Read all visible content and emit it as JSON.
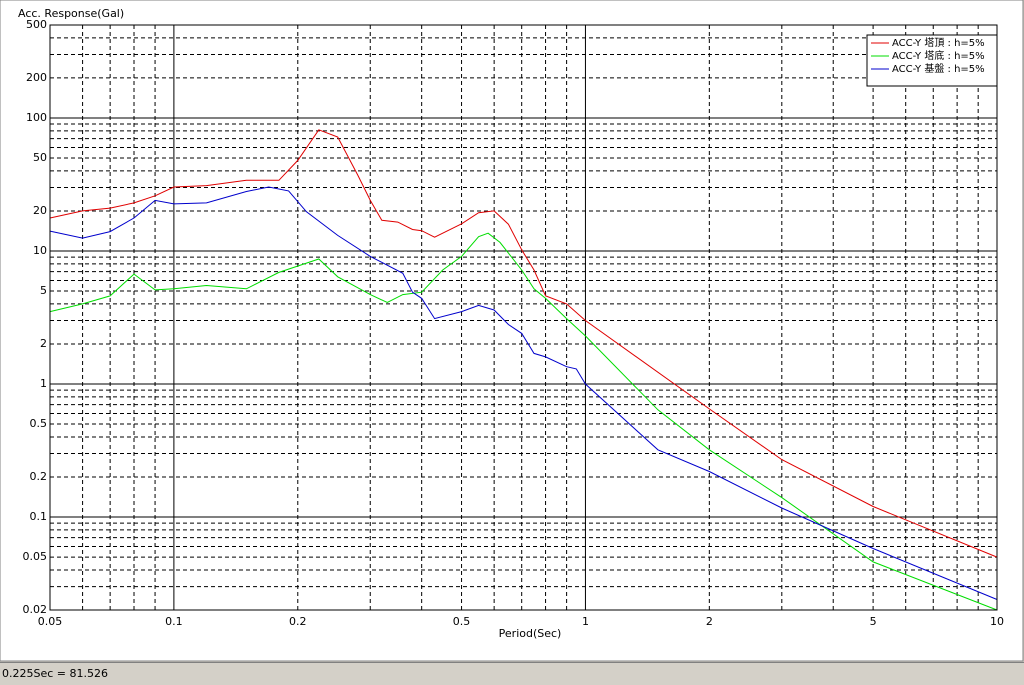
{
  "chart_data": {
    "type": "line",
    "y_label": "Acc. Response(Gal)",
    "x_label": "Period(Sec)",
    "xscale": "log",
    "yscale": "log",
    "legend": "top-right",
    "xlim": [
      0.05,
      10
    ],
    "ylim": [
      0.02,
      500
    ],
    "xticks": [
      0.05,
      0.1,
      0.2,
      0.5,
      1,
      2,
      5,
      10
    ],
    "yticks": [
      0.02,
      0.05,
      0.1,
      0.2,
      0.5,
      1,
      2,
      5,
      10,
      20,
      50,
      100,
      200,
      500
    ],
    "xgrid": [
      0.05,
      0.06,
      0.07,
      0.08,
      0.09,
      0.1,
      0.2,
      0.3,
      0.4,
      0.5,
      0.6,
      0.7,
      0.8,
      0.9,
      1,
      2,
      3,
      4,
      5,
      6,
      7,
      8,
      9,
      10
    ],
    "ygrid": [
      0.02,
      0.03,
      0.04,
      0.05,
      0.06,
      0.07,
      0.08,
      0.09,
      0.1,
      0.2,
      0.3,
      0.4,
      0.5,
      0.6,
      0.7,
      0.8,
      0.9,
      1,
      2,
      3,
      4,
      5,
      6,
      7,
      8,
      9,
      10,
      20,
      30,
      40,
      50,
      60,
      70,
      80,
      90,
      100,
      200,
      300,
      400,
      500
    ],
    "series": [
      {
        "name": "ACC-Y 塔頂 : h=5%",
        "color": "#e00000",
        "x": [
          0.05,
          0.06,
          0.07,
          0.08,
          0.09,
          0.1,
          0.12,
          0.15,
          0.18,
          0.2,
          0.225,
          0.25,
          0.28,
          0.3,
          0.32,
          0.35,
          0.38,
          0.4,
          0.43,
          0.5,
          0.55,
          0.6,
          0.65,
          0.7,
          0.75,
          0.8,
          0.9,
          1,
          2,
          3,
          5,
          10
        ],
        "values": [
          17.7,
          20,
          21,
          23,
          26,
          30.3,
          31,
          34,
          34,
          48,
          81.526,
          72,
          37,
          24,
          17,
          16.5,
          14.5,
          14.2,
          12.7,
          16,
          19.4,
          20,
          15.9,
          10.2,
          7.2,
          4.6,
          4,
          3,
          0.65,
          0.27,
          0.12,
          0.05
        ]
      },
      {
        "name": "ACC-Y 塔底 : h=5%",
        "color": "#00dd00",
        "x": [
          0.05,
          0.06,
          0.07,
          0.08,
          0.09,
          0.1,
          0.12,
          0.15,
          0.18,
          0.225,
          0.25,
          0.3,
          0.33,
          0.36,
          0.4,
          0.45,
          0.5,
          0.55,
          0.58,
          0.62,
          0.7,
          0.75,
          0.8,
          0.9,
          1,
          1.5,
          2,
          3,
          5,
          10
        ],
        "values": [
          3.5,
          4,
          4.6,
          6.7,
          5.1,
          5.2,
          5.5,
          5.2,
          6.9,
          8.7,
          6.4,
          4.7,
          4.1,
          4.7,
          4.9,
          7.2,
          9.1,
          12.8,
          13.6,
          11.6,
          7.2,
          5.2,
          4.4,
          3.1,
          2.3,
          0.64,
          0.32,
          0.14,
          0.046,
          0.02
        ]
      },
      {
        "name": "ACC-Y 基盤 : h=5%",
        "color": "#0000cc",
        "x": [
          0.05,
          0.06,
          0.07,
          0.08,
          0.09,
          0.1,
          0.12,
          0.15,
          0.17,
          0.19,
          0.21,
          0.25,
          0.3,
          0.36,
          0.38,
          0.4,
          0.43,
          0.5,
          0.55,
          0.6,
          0.65,
          0.7,
          0.75,
          0.8,
          0.9,
          0.95,
          1,
          1.5,
          2,
          3,
          5,
          10
        ],
        "values": [
          14.1,
          12.5,
          14,
          17.7,
          24,
          22.6,
          23,
          28,
          30.3,
          28.3,
          19.7,
          13.1,
          9.1,
          6.8,
          4.9,
          4.4,
          3.1,
          3.5,
          3.9,
          3.6,
          2.8,
          2.4,
          1.7,
          1.6,
          1.35,
          1.3,
          1,
          0.32,
          0.22,
          0.117,
          0.058,
          0.024
        ]
      }
    ]
  },
  "status_bar": "0.225Sec = 81.526"
}
